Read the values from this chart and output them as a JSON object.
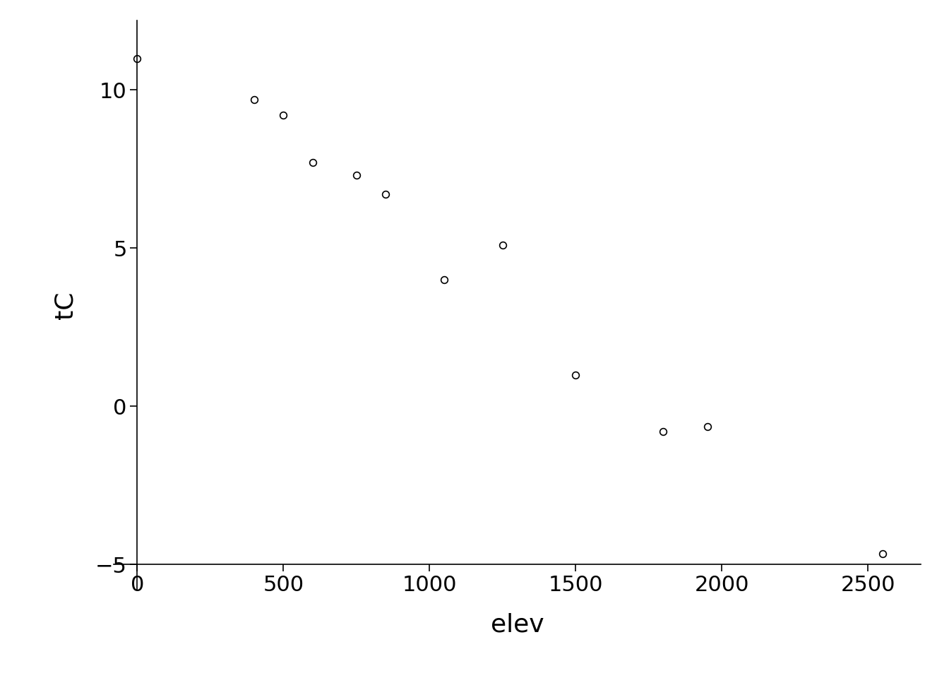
{
  "x": [
    0,
    400,
    500,
    600,
    750,
    850,
    1050,
    1250,
    1500,
    1800,
    1950,
    2550
  ],
  "y": [
    11.0,
    9.7,
    9.2,
    7.7,
    7.3,
    6.7,
    4.0,
    5.1,
    1.0,
    -0.8,
    -0.65,
    -4.65
  ],
  "xlabel": "elev",
  "ylabel": "tC",
  "xlim": [
    -80,
    2680
  ],
  "ylim": [
    -5.8,
    12.2
  ],
  "xticks": [
    0,
    500,
    1000,
    1500,
    2000,
    2500
  ],
  "yticks": [
    -5,
    0,
    5,
    10
  ],
  "background_color": "#ffffff",
  "marker": "o",
  "marker_size": 7,
  "marker_facecolor": "white",
  "marker_edgecolor": "black",
  "marker_linewidth": 1.2
}
